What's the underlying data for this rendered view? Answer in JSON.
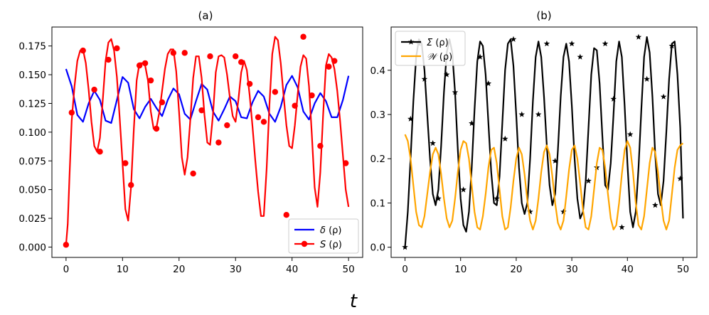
{
  "chart_data": [
    {
      "id": "a",
      "type": "line",
      "title": "(a)",
      "xlim": [
        -2.5,
        52.5
      ],
      "ylim": [
        -0.009,
        0.1915
      ],
      "xticks": [
        0,
        10,
        20,
        30,
        40,
        50
      ],
      "yticks": [
        0.0,
        0.025,
        0.05,
        0.075,
        0.1,
        0.125,
        0.15,
        0.175
      ],
      "ytick_labels": [
        "0.000",
        "0.025",
        "0.050",
        "0.075",
        "0.100",
        "0.125",
        "0.150",
        "0.175"
      ],
      "legend_position": "lower-right",
      "series": [
        {
          "name": "δ (ρ)",
          "legend_symbol": "δ",
          "legend_arg": " (ρ)",
          "color": "#0000ff",
          "marker": "none",
          "x": [
            0,
            1,
            2,
            3,
            4,
            5,
            6,
            7,
            8,
            9,
            10,
            11,
            12,
            13,
            14,
            15,
            16,
            17,
            18,
            19,
            20,
            21,
            22,
            23,
            24,
            25,
            26,
            27,
            28,
            29,
            30,
            31,
            32,
            33,
            34,
            35,
            36,
            37,
            38,
            39,
            40,
            41,
            42,
            43,
            44,
            45,
            46,
            47,
            48,
            49,
            50
          ],
          "y": [
            0.155,
            0.14,
            0.115,
            0.109,
            0.125,
            0.136,
            0.128,
            0.11,
            0.108,
            0.128,
            0.148,
            0.143,
            0.12,
            0.112,
            0.122,
            0.129,
            0.121,
            0.114,
            0.128,
            0.138,
            0.133,
            0.116,
            0.111,
            0.127,
            0.142,
            0.137,
            0.118,
            0.11,
            0.12,
            0.131,
            0.127,
            0.113,
            0.112,
            0.126,
            0.136,
            0.131,
            0.116,
            0.109,
            0.122,
            0.141,
            0.149,
            0.139,
            0.118,
            0.111,
            0.125,
            0.134,
            0.127,
            0.113,
            0.113,
            0.128,
            0.149
          ]
        },
        {
          "name": "S (ρ)",
          "legend_symbol": "S",
          "legend_arg": " (ρ)",
          "color": "#ff0000",
          "marker": "circle",
          "x": [
            0,
            0.3,
            0.6,
            1,
            1.5,
            2,
            2.5,
            3,
            3.5,
            4,
            4.5,
            5,
            5.5,
            6,
            6.5,
            7,
            7.5,
            8,
            8.5,
            9,
            9.5,
            10,
            10.5,
            11,
            11.5,
            12,
            12.5,
            13,
            13.5,
            14,
            14.5,
            15,
            15.5,
            16,
            16.5,
            17,
            17.5,
            18,
            18.5,
            19,
            19.5,
            20,
            20.5,
            21,
            21.5,
            22,
            22.5,
            23,
            23.5,
            24,
            24.5,
            25,
            25.5,
            26,
            26.5,
            27,
            27.5,
            28,
            28.5,
            29,
            29.5,
            30,
            30.5,
            31,
            31.5,
            32,
            32.5,
            33,
            33.5,
            34,
            34.5,
            35,
            35.5,
            36,
            36.5,
            37,
            37.5,
            38,
            38.5,
            39,
            39.5,
            40,
            40.5,
            41,
            41.5,
            42,
            42.5,
            43,
            43.5,
            44,
            44.5,
            45,
            45.5,
            46,
            46.5,
            47,
            47.5,
            48,
            48.5,
            49,
            49.5,
            50
          ],
          "y": [
            0.002,
            0.02,
            0.06,
            0.11,
            0.14,
            0.162,
            0.171,
            0.172,
            0.16,
            0.137,
            0.109,
            0.088,
            0.083,
            0.095,
            0.128,
            0.162,
            0.178,
            0.181,
            0.171,
            0.148,
            0.112,
            0.073,
            0.033,
            0.023,
            0.052,
            0.103,
            0.145,
            0.16,
            0.16,
            0.158,
            0.145,
            0.118,
            0.103,
            0.104,
            0.117,
            0.136,
            0.155,
            0.168,
            0.172,
            0.172,
            0.153,
            0.118,
            0.078,
            0.063,
            0.078,
            0.111,
            0.147,
            0.166,
            0.166,
            0.147,
            0.115,
            0.091,
            0.089,
            0.115,
            0.152,
            0.166,
            0.167,
            0.165,
            0.15,
            0.13,
            0.114,
            0.109,
            0.128,
            0.152,
            0.162,
            0.154,
            0.132,
            0.105,
            0.075,
            0.048,
            0.027,
            0.027,
            0.068,
            0.124,
            0.168,
            0.183,
            0.18,
            0.16,
            0.132,
            0.106,
            0.088,
            0.086,
            0.106,
            0.133,
            0.157,
            0.167,
            0.164,
            0.14,
            0.098,
            0.052,
            0.035,
            0.065,
            0.115,
            0.158,
            0.168,
            0.165,
            0.155,
            0.136,
            0.11,
            0.08,
            0.05,
            0.035
          ],
          "marker_x": [
            0,
            1,
            3,
            5,
            6,
            7.5,
            9,
            10.5,
            11.5,
            13,
            14,
            15,
            16,
            17,
            19,
            21,
            22.5,
            24,
            25.5,
            27,
            28.5,
            30,
            31,
            32.5,
            34,
            35,
            37,
            39,
            40.5,
            42,
            43.5,
            45,
            46.5,
            47.5,
            49.5
          ],
          "marker_y": [
            0.002,
            0.117,
            0.171,
            0.137,
            0.083,
            0.163,
            0.173,
            0.073,
            0.054,
            0.158,
            0.16,
            0.145,
            0.103,
            0.126,
            0.169,
            0.169,
            0.064,
            0.119,
            0.166,
            0.091,
            0.106,
            0.166,
            0.161,
            0.142,
            0.113,
            0.109,
            0.135,
            0.028,
            0.123,
            0.183,
            0.132,
            0.088,
            0.157,
            0.162,
            0.073
          ]
        }
      ]
    },
    {
      "id": "b",
      "type": "line",
      "title": "(b)",
      "xlim": [
        -2.5,
        52.5
      ],
      "ylim": [
        -0.023,
        0.4977
      ],
      "xticks": [
        0,
        10,
        20,
        30,
        40,
        50
      ],
      "yticks": [
        0.0,
        0.1,
        0.2,
        0.3,
        0.4
      ],
      "ytick_labels": [
        "0.0",
        "0.1",
        "0.2",
        "0.3",
        "0.4"
      ],
      "legend_position": "top-left",
      "series": [
        {
          "name": "Σ (ρ)",
          "legend_symbol": "Σ",
          "legend_arg": " (ρ)",
          "color": "#000000",
          "marker": "star",
          "x": [
            0,
            0.5,
            1,
            1.5,
            2,
            2.5,
            3,
            3.5,
            4,
            4.5,
            5,
            5.5,
            6,
            6.5,
            7,
            7.5,
            8,
            8.5,
            9,
            9.5,
            10,
            10.5,
            11,
            11.5,
            12,
            12.5,
            13,
            13.5,
            14,
            14.5,
            15,
            15.5,
            16,
            16.5,
            17,
            17.5,
            18,
            18.5,
            19,
            19.5,
            20,
            20.5,
            21,
            21.5,
            22,
            22.5,
            23,
            23.5,
            24,
            24.5,
            25,
            25.5,
            26,
            26.5,
            27,
            27.5,
            28,
            28.5,
            29,
            29.5,
            30,
            30.5,
            31,
            31.5,
            32,
            32.5,
            33,
            33.5,
            34,
            34.5,
            35,
            35.5,
            36,
            36.5,
            37,
            37.5,
            38,
            38.5,
            39,
            39.5,
            40,
            40.5,
            41,
            41.5,
            42,
            42.5,
            43,
            43.5,
            44,
            44.5,
            45,
            45.5,
            46,
            46.5,
            47,
            47.5,
            48,
            48.5,
            49,
            49.5,
            50
          ],
          "y": [
            0.0,
            0.08,
            0.2,
            0.33,
            0.43,
            0.47,
            0.46,
            0.4,
            0.3,
            0.2,
            0.12,
            0.095,
            0.13,
            0.23,
            0.35,
            0.44,
            0.47,
            0.44,
            0.35,
            0.22,
            0.11,
            0.05,
            0.035,
            0.08,
            0.18,
            0.31,
            0.42,
            0.465,
            0.455,
            0.39,
            0.28,
            0.17,
            0.1,
            0.095,
            0.16,
            0.28,
            0.4,
            0.46,
            0.47,
            0.41,
            0.3,
            0.18,
            0.1,
            0.075,
            0.1,
            0.2,
            0.33,
            0.43,
            0.465,
            0.43,
            0.34,
            0.23,
            0.14,
            0.095,
            0.12,
            0.22,
            0.34,
            0.43,
            0.46,
            0.42,
            0.32,
            0.2,
            0.11,
            0.065,
            0.08,
            0.15,
            0.27,
            0.39,
            0.45,
            0.445,
            0.37,
            0.25,
            0.14,
            0.13,
            0.19,
            0.3,
            0.42,
            0.465,
            0.43,
            0.32,
            0.19,
            0.08,
            0.045,
            0.08,
            0.18,
            0.31,
            0.43,
            0.475,
            0.44,
            0.34,
            0.21,
            0.12,
            0.095,
            0.15,
            0.26,
            0.38,
            0.46,
            0.465,
            0.39,
            0.27,
            0.065
          ],
          "marker_x": [
            0,
            1,
            2.5,
            3.5,
            5,
            6,
            7.5,
            9,
            10.5,
            12,
            13.5,
            15,
            16.5,
            18,
            19.5,
            21,
            22.5,
            24,
            25.5,
            27,
            28.5,
            30,
            31.5,
            33,
            34.5,
            36,
            37.5,
            39,
            40.5,
            42,
            43.5,
            45,
            46.5,
            48,
            49.5
          ],
          "marker_y": [
            0.0,
            0.29,
            0.46,
            0.38,
            0.235,
            0.11,
            0.39,
            0.35,
            0.13,
            0.28,
            0.43,
            0.37,
            0.11,
            0.245,
            0.47,
            0.3,
            0.08,
            0.3,
            0.46,
            0.195,
            0.08,
            0.46,
            0.43,
            0.15,
            0.18,
            0.46,
            0.335,
            0.045,
            0.255,
            0.475,
            0.38,
            0.095,
            0.34,
            0.455,
            0.155
          ]
        },
        {
          "name": "𝒲 (ρ)",
          "legend_symbol": "𝒲",
          "legend_arg": " (ρ)",
          "color": "#ffa500",
          "marker": "none",
          "x": [
            0,
            0.5,
            1,
            1.5,
            2,
            2.5,
            3,
            3.5,
            4,
            4.5,
            5,
            5.5,
            6,
            6.5,
            7,
            7.5,
            8,
            8.5,
            9,
            9.5,
            10,
            10.5,
            11,
            11.5,
            12,
            12.5,
            13,
            13.5,
            14,
            14.5,
            15,
            15.5,
            16,
            16.5,
            17,
            17.5,
            18,
            18.5,
            19,
            19.5,
            20,
            20.5,
            21,
            21.5,
            22,
            22.5,
            23,
            23.5,
            24,
            24.5,
            25,
            25.5,
            26,
            26.5,
            27,
            27.5,
            28,
            28.5,
            29,
            29.5,
            30,
            30.5,
            31,
            31.5,
            32,
            32.5,
            33,
            33.5,
            34,
            34.5,
            35,
            35.5,
            36,
            36.5,
            37,
            37.5,
            38,
            38.5,
            39,
            39.5,
            40,
            40.5,
            41,
            41.5,
            42,
            42.5,
            43,
            43.5,
            44,
            44.5,
            45,
            45.5,
            46,
            46.5,
            47,
            47.5,
            48,
            48.5,
            49,
            49.5,
            50
          ],
          "y": [
            0.255,
            0.24,
            0.2,
            0.14,
            0.08,
            0.05,
            0.045,
            0.07,
            0.12,
            0.17,
            0.21,
            0.225,
            0.21,
            0.165,
            0.11,
            0.065,
            0.045,
            0.06,
            0.11,
            0.17,
            0.22,
            0.24,
            0.235,
            0.2,
            0.14,
            0.08,
            0.045,
            0.04,
            0.07,
            0.12,
            0.18,
            0.22,
            0.225,
            0.19,
            0.13,
            0.07,
            0.04,
            0.045,
            0.09,
            0.15,
            0.2,
            0.225,
            0.21,
            0.165,
            0.105,
            0.06,
            0.04,
            0.06,
            0.11,
            0.17,
            0.215,
            0.23,
            0.21,
            0.16,
            0.1,
            0.055,
            0.04,
            0.06,
            0.115,
            0.175,
            0.22,
            0.23,
            0.2,
            0.145,
            0.085,
            0.045,
            0.04,
            0.07,
            0.13,
            0.19,
            0.225,
            0.22,
            0.18,
            0.12,
            0.065,
            0.04,
            0.05,
            0.1,
            0.165,
            0.22,
            0.24,
            0.225,
            0.17,
            0.1,
            0.05,
            0.04,
            0.07,
            0.13,
            0.19,
            0.225,
            0.215,
            0.17,
            0.11,
            0.06,
            0.04,
            0.06,
            0.12,
            0.18,
            0.22,
            0.23,
            0.235
          ]
        }
      ]
    }
  ],
  "figure": {
    "xlabel": "t"
  }
}
